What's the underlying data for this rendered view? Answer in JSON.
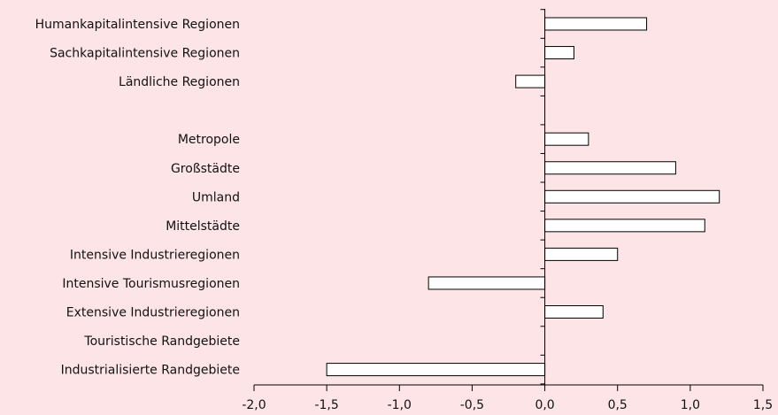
{
  "colors": {
    "background": "#fde4e6",
    "bar_fill": "#ffffff",
    "bar_stroke": "#000000",
    "axis": "#000000"
  },
  "chart_data": {
    "type": "bar",
    "orientation": "horizontal",
    "categories": [
      "Humankapitalintensive Regionen",
      "Sachkapitalintensive Regionen",
      "Ländliche Regionen",
      "",
      "Metropole",
      "Großstädte",
      "Umland",
      "Mittelstädte",
      "Intensive Industrieregionen",
      "Intensive Tourismusregionen",
      "Extensive Industrieregionen",
      "Touristische Randgebiete",
      "Industrialisierte Randgebiete"
    ],
    "values": [
      0.7,
      0.2,
      -0.2,
      null,
      0.3,
      0.9,
      1.2,
      1.1,
      0.5,
      -0.8,
      0.4,
      0.0,
      -1.5
    ],
    "xlim": [
      -2.0,
      1.5
    ],
    "xticks": [
      -2.0,
      -1.5,
      -1.0,
      -0.5,
      0.0,
      0.5,
      1.0,
      1.5
    ],
    "xtick_labels": [
      "-2,0",
      "-1,5",
      "-1,0",
      "-0,5",
      "0,0",
      "0,5",
      "1,0",
      "1,5"
    ],
    "grid": false,
    "legend": "none",
    "title": "",
    "xlabel": "",
    "ylabel": ""
  }
}
